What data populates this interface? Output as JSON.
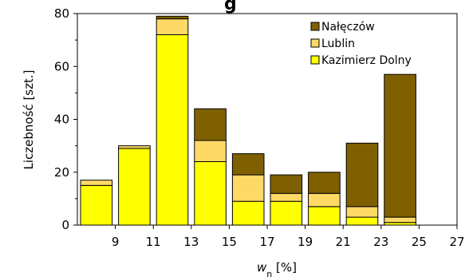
{
  "chart_data": {
    "type": "bar",
    "stacked": true,
    "title_fragment": "g",
    "xlabel_main": "w",
    "xlabel_sub": "n",
    "xlabel_unit": " [%]",
    "ylabel": "Liczebność [szt.]",
    "ylim": [
      0,
      80
    ],
    "yticks": [
      0,
      20,
      40,
      60,
      80
    ],
    "xlim": [
      7,
      27
    ],
    "xticks": [
      9,
      11,
      13,
      15,
      17,
      19,
      21,
      23,
      25,
      27
    ],
    "xtick_labels": [
      "9",
      "11",
      "13",
      "15",
      "17",
      "19",
      "21",
      "23",
      "25",
      "27"
    ],
    "bins": [
      [
        7,
        9
      ],
      [
        9,
        11
      ],
      [
        11,
        13
      ],
      [
        13,
        15
      ],
      [
        15,
        17
      ],
      [
        17,
        19
      ],
      [
        19,
        21
      ],
      [
        21,
        23
      ],
      [
        23,
        25
      ],
      [
        25,
        27
      ]
    ],
    "series": [
      {
        "name": "Kazimierz Dolny",
        "color": "#FFFF00",
        "values": [
          15,
          29,
          72,
          24,
          9,
          9,
          7,
          3,
          1,
          0
        ]
      },
      {
        "name": "Lublin",
        "color": "#FFD966",
        "values": [
          2,
          1,
          6,
          8,
          10,
          3,
          5,
          4,
          2,
          0
        ]
      },
      {
        "name": "Nałęczów",
        "color": "#7F6000",
        "values": [
          0,
          0,
          1,
          12,
          8,
          7,
          8,
          24,
          54,
          0
        ]
      }
    ],
    "legend_order": [
      "Nałęczów",
      "Lublin",
      "Kazimierz Dolny"
    ],
    "legend_position": "top-right",
    "grid": false
  }
}
